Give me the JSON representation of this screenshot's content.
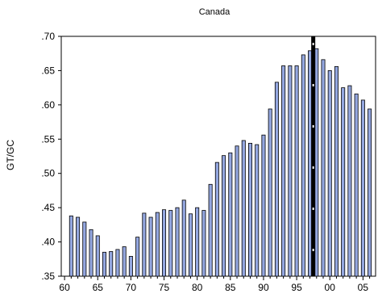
{
  "chart_data": {
    "type": "bar",
    "title": "Canada",
    "xlabel": "",
    "ylabel": "GT/GC",
    "ylim": [
      0.35,
      0.7
    ],
    "yticks": [
      ".35",
      ".40",
      ".45",
      ".50",
      ".55",
      ".60",
      ".65",
      ".70"
    ],
    "ytick_values": [
      0.35,
      0.4,
      0.45,
      0.5,
      0.55,
      0.6,
      0.65,
      0.7
    ],
    "xticks": [
      "60",
      "65",
      "70",
      "75",
      "80",
      "85",
      "90",
      "95",
      "00",
      "05"
    ],
    "xtick_years": [
      1960,
      1965,
      1970,
      1975,
      1980,
      1985,
      1990,
      1995,
      2000,
      2005
    ],
    "bar_color": "#94a7e0",
    "series": [
      {
        "x": [
          1961,
          1962,
          1963,
          1964,
          1965,
          1966,
          1967,
          1968,
          1969,
          1970,
          1971,
          1972,
          1973,
          1974,
          1975,
          1976,
          1977,
          1978,
          1979,
          1980,
          1981,
          1982,
          1983,
          1984,
          1985,
          1986,
          1987,
          1988,
          1989,
          1990,
          1991,
          1992,
          1993,
          1994,
          1995,
          1996,
          1997,
          1998,
          1999,
          2000,
          2001,
          2002,
          2003,
          2004,
          2005,
          2006
        ],
        "values": [
          0.438,
          0.436,
          0.429,
          0.418,
          0.409,
          0.385,
          0.386,
          0.389,
          0.393,
          0.379,
          0.407,
          0.442,
          0.436,
          0.443,
          0.447,
          0.446,
          0.45,
          0.461,
          0.441,
          0.45,
          0.446,
          0.484,
          0.516,
          0.526,
          0.53,
          0.54,
          0.548,
          0.544,
          0.542,
          0.556,
          0.594,
          0.633,
          0.657,
          0.657,
          0.657,
          0.673,
          0.679,
          0.682,
          0.666,
          0.65,
          0.656,
          0.625,
          0.628,
          0.616,
          0.607,
          0.594
        ]
      }
    ],
    "vline": {
      "x": 1997.5,
      "style": "thick-black-dashed-white"
    }
  }
}
